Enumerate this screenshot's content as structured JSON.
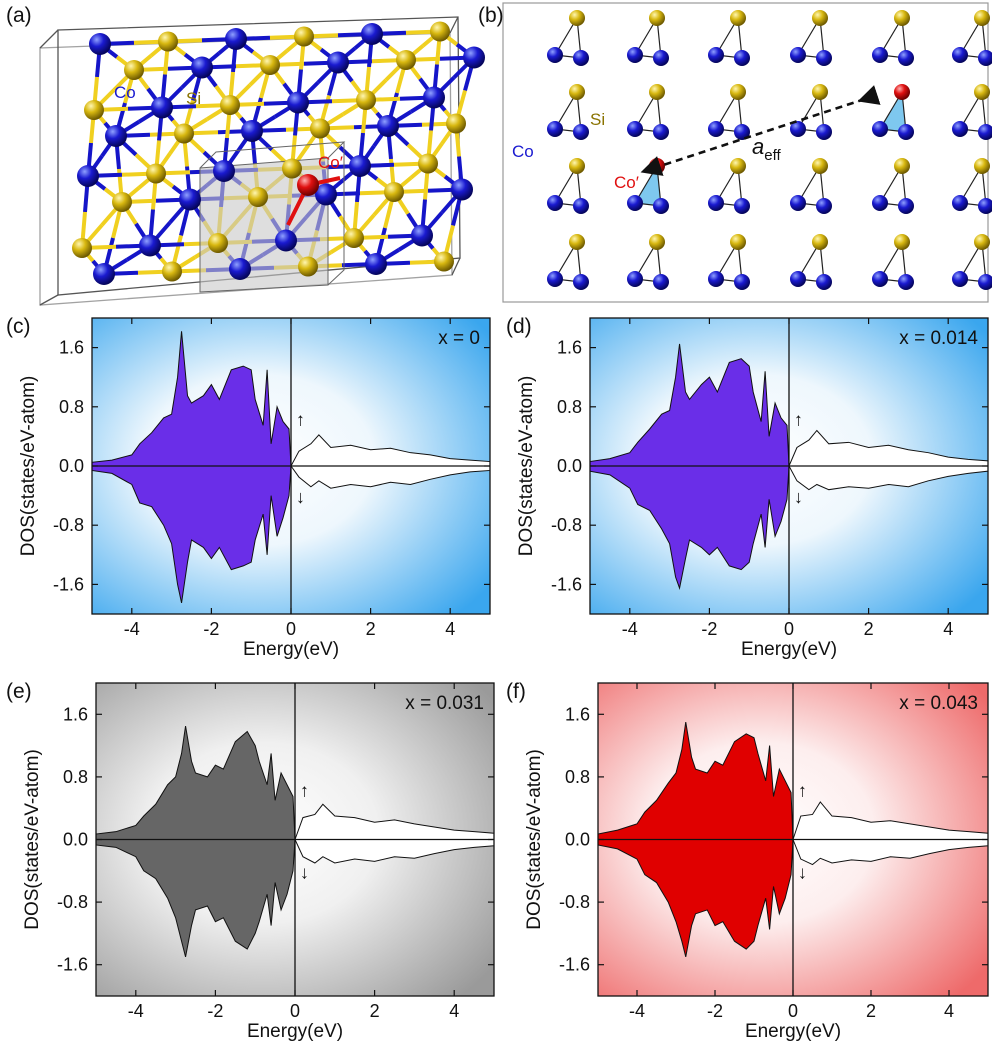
{
  "figure": {
    "panel_labels": [
      "(a)",
      "(b)",
      "(c)",
      "(d)",
      "(e)",
      "(f)"
    ]
  },
  "structure": {
    "atom_labels": {
      "co": "Co",
      "si": "Si",
      "co_prime": "Co′",
      "a_eff_main": "a",
      "a_eff_sub": "eff"
    },
    "colors": {
      "co": "#1010b8",
      "si": "#d4b20a",
      "co_prime": "#e01010",
      "bond_co": "#1515c8",
      "bond_si": "#f0d020",
      "triangle_fill": "#7ec8ef"
    }
  },
  "dos_axes": {
    "xlabel": "Energy(eV)",
    "ylabel": "DOS(states/eV-atom)",
    "xlim": [
      -5,
      5
    ],
    "ylim": [
      -2.0,
      2.0
    ],
    "xticks": [
      -4,
      -2,
      0,
      2,
      4
    ],
    "yticks": [
      -1.6,
      -0.8,
      0.0,
      0.8,
      1.6
    ],
    "xtick_labels": [
      "-4",
      "-2",
      "0",
      "2",
      "4"
    ],
    "ytick_labels": [
      "-1.6",
      "-0.8",
      "0.0",
      "0.8",
      "1.6"
    ],
    "spin_up_symbol": "↑",
    "spin_down_symbol": "↓"
  },
  "chart_data": [
    {
      "type": "area",
      "panel": "c",
      "annotation": "x = 0",
      "fill_color": "#6a2ee8",
      "bg_color": "#3aa6ee",
      "x": [
        -5.0,
        -4.5,
        -4.0,
        -3.8,
        -3.5,
        -3.2,
        -3.0,
        -2.85,
        -2.75,
        -2.6,
        -2.5,
        -2.2,
        -2.0,
        -1.8,
        -1.5,
        -1.2,
        -1.0,
        -0.9,
        -0.7,
        -0.6,
        -0.5,
        -0.35,
        -0.2,
        -0.05,
        0.0,
        0.2,
        0.5,
        0.7,
        1.0,
        1.5,
        2.0,
        2.5,
        3.0,
        3.5,
        4.0,
        4.5,
        5.0
      ],
      "spin_up": [
        0.05,
        0.08,
        0.15,
        0.3,
        0.45,
        0.65,
        0.7,
        1.2,
        1.82,
        0.95,
        0.85,
        0.95,
        1.1,
        0.9,
        1.3,
        1.35,
        1.3,
        0.9,
        0.55,
        1.3,
        0.3,
        0.8,
        0.6,
        0.5,
        0.0,
        0.2,
        0.3,
        0.42,
        0.25,
        0.28,
        0.22,
        0.24,
        0.18,
        0.15,
        0.1,
        0.08,
        0.06
      ],
      "spin_down": [
        -0.06,
        -0.1,
        -0.25,
        -0.5,
        -0.55,
        -0.8,
        -1.05,
        -1.6,
        -1.85,
        -1.3,
        -1.0,
        -1.1,
        -1.25,
        -1.1,
        -1.4,
        -1.35,
        -1.3,
        -1.0,
        -0.65,
        -1.2,
        -0.4,
        -0.95,
        -0.7,
        -0.4,
        0.0,
        -0.15,
        -0.28,
        -0.2,
        -0.3,
        -0.25,
        -0.28,
        -0.22,
        -0.25,
        -0.18,
        -0.12,
        -0.08,
        -0.06
      ]
    },
    {
      "type": "area",
      "panel": "d",
      "annotation": "x = 0.014",
      "fill_color": "#6a2ee8",
      "bg_color": "#3aa6ee",
      "x": [
        -5.0,
        -4.5,
        -4.0,
        -3.8,
        -3.5,
        -3.2,
        -3.0,
        -2.85,
        -2.75,
        -2.6,
        -2.5,
        -2.2,
        -2.0,
        -1.8,
        -1.5,
        -1.2,
        -1.0,
        -0.9,
        -0.7,
        -0.6,
        -0.5,
        -0.35,
        -0.2,
        -0.05,
        0.0,
        0.2,
        0.5,
        0.7,
        1.0,
        1.5,
        2.0,
        2.5,
        3.0,
        3.5,
        4.0,
        4.5,
        5.0
      ],
      "spin_up": [
        0.06,
        0.1,
        0.18,
        0.32,
        0.5,
        0.7,
        0.75,
        1.2,
        1.65,
        1.0,
        0.9,
        1.1,
        1.2,
        1.0,
        1.4,
        1.45,
        1.35,
        1.0,
        0.6,
        1.28,
        0.4,
        0.85,
        0.65,
        0.55,
        0.0,
        0.25,
        0.35,
        0.48,
        0.3,
        0.32,
        0.25,
        0.28,
        0.22,
        0.18,
        0.12,
        0.09,
        0.07
      ],
      "spin_down": [
        -0.07,
        -0.12,
        -0.3,
        -0.52,
        -0.6,
        -0.85,
        -1.05,
        -1.5,
        -1.65,
        -1.25,
        -1.0,
        -1.1,
        -1.2,
        -1.1,
        -1.35,
        -1.4,
        -1.3,
        -1.05,
        -0.65,
        -1.1,
        -0.45,
        -0.95,
        -0.75,
        -0.45,
        0.0,
        -0.2,
        -0.32,
        -0.25,
        -0.32,
        -0.28,
        -0.3,
        -0.25,
        -0.28,
        -0.2,
        -0.14,
        -0.1,
        -0.07
      ]
    },
    {
      "type": "area",
      "panel": "e",
      "annotation": "x = 0.031",
      "fill_color": "#666666",
      "bg_color": "#a8a8a8",
      "x": [
        -5.0,
        -4.5,
        -4.0,
        -3.8,
        -3.5,
        -3.2,
        -3.0,
        -2.85,
        -2.75,
        -2.6,
        -2.5,
        -2.2,
        -2.0,
        -1.8,
        -1.5,
        -1.2,
        -1.0,
        -0.9,
        -0.7,
        -0.6,
        -0.5,
        -0.35,
        -0.2,
        -0.05,
        0.0,
        0.2,
        0.5,
        0.7,
        1.0,
        1.5,
        2.0,
        2.5,
        3.0,
        3.5,
        4.0,
        4.5,
        5.0
      ],
      "spin_up": [
        0.07,
        0.1,
        0.18,
        0.3,
        0.45,
        0.7,
        0.8,
        1.1,
        1.45,
        1.0,
        0.85,
        0.8,
        0.95,
        0.9,
        1.25,
        1.38,
        1.2,
        1.0,
        0.7,
        1.1,
        0.5,
        0.85,
        0.7,
        0.55,
        0.0,
        0.28,
        0.32,
        0.45,
        0.3,
        0.28,
        0.22,
        0.25,
        0.2,
        0.16,
        0.12,
        0.1,
        0.08
      ],
      "spin_down": [
        -0.07,
        -0.1,
        -0.22,
        -0.4,
        -0.5,
        -0.75,
        -1.0,
        -1.3,
        -1.5,
        -1.1,
        -0.9,
        -0.85,
        -1.05,
        -1.0,
        -1.3,
        -1.4,
        -1.2,
        -1.05,
        -0.7,
        -1.1,
        -0.55,
        -0.9,
        -0.7,
        -0.4,
        0.0,
        -0.22,
        -0.3,
        -0.22,
        -0.3,
        -0.25,
        -0.28,
        -0.22,
        -0.24,
        -0.18,
        -0.13,
        -0.1,
        -0.08
      ]
    },
    {
      "type": "area",
      "panel": "f",
      "annotation": "x = 0.043",
      "fill_color": "#e00000",
      "bg_color": "#f07a7a",
      "x": [
        -5.0,
        -4.5,
        -4.0,
        -3.8,
        -3.5,
        -3.2,
        -3.0,
        -2.85,
        -2.75,
        -2.6,
        -2.5,
        -2.2,
        -2.0,
        -1.8,
        -1.5,
        -1.2,
        -1.0,
        -0.9,
        -0.7,
        -0.6,
        -0.5,
        -0.35,
        -0.2,
        -0.05,
        0.0,
        0.2,
        0.5,
        0.7,
        1.0,
        1.5,
        2.0,
        2.5,
        3.0,
        3.5,
        4.0,
        4.5,
        5.0
      ],
      "spin_up": [
        0.07,
        0.12,
        0.2,
        0.35,
        0.5,
        0.72,
        0.85,
        1.15,
        1.5,
        1.05,
        0.9,
        0.85,
        1.0,
        0.95,
        1.25,
        1.35,
        1.3,
        1.1,
        0.75,
        1.2,
        0.55,
        0.9,
        0.75,
        0.6,
        0.0,
        0.3,
        0.32,
        0.48,
        0.3,
        0.28,
        0.22,
        0.24,
        0.2,
        0.16,
        0.12,
        0.1,
        0.08
      ],
      "spin_down": [
        -0.07,
        -0.12,
        -0.25,
        -0.45,
        -0.55,
        -0.8,
        -1.05,
        -1.3,
        -1.5,
        -1.1,
        -0.95,
        -0.9,
        -1.1,
        -1.05,
        -1.3,
        -1.4,
        -1.3,
        -1.1,
        -0.75,
        -1.15,
        -0.6,
        -0.95,
        -0.75,
        -0.45,
        0.0,
        -0.25,
        -0.32,
        -0.24,
        -0.3,
        -0.26,
        -0.28,
        -0.22,
        -0.24,
        -0.18,
        -0.13,
        -0.1,
        -0.08
      ]
    }
  ]
}
